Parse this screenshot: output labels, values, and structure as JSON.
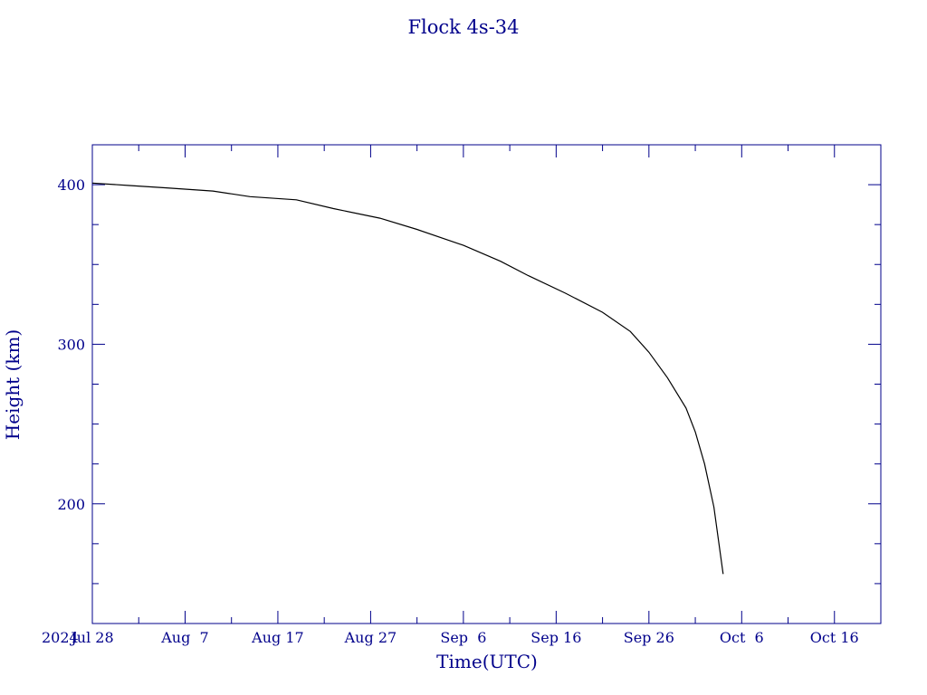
{
  "chart_data": {
    "type": "line",
    "title": "Flock 4s-34",
    "xlabel": "Time(UTC)",
    "ylabel": "Height (km)",
    "year_label": "2024",
    "x_range": [
      "2024-07-28",
      "2024-10-21"
    ],
    "ylim": [
      125,
      425
    ],
    "x_ticks": [
      {
        "date": "2024-07-28",
        "label": "Jul 28"
      },
      {
        "date": "2024-08-07",
        "label": "Aug  7"
      },
      {
        "date": "2024-08-17",
        "label": "Aug 17"
      },
      {
        "date": "2024-08-27",
        "label": "Aug 27"
      },
      {
        "date": "2024-09-06",
        "label": "Sep  6"
      },
      {
        "date": "2024-09-16",
        "label": "Sep 16"
      },
      {
        "date": "2024-09-26",
        "label": "Sep 26"
      },
      {
        "date": "2024-10-06",
        "label": "Oct  6"
      },
      {
        "date": "2024-10-16",
        "label": "Oct 16"
      }
    ],
    "y_ticks": [
      200,
      300,
      400
    ],
    "grid": false,
    "line_color": "#000000",
    "axis_color": "#00008b",
    "series": [
      {
        "x": [
          "2024-07-28",
          "2024-08-01",
          "2024-08-05",
          "2024-08-10",
          "2024-08-14",
          "2024-08-19",
          "2024-08-23",
          "2024-08-28",
          "2024-09-01",
          "2024-09-06",
          "2024-09-10",
          "2024-09-13",
          "2024-09-17",
          "2024-09-21",
          "2024-09-24",
          "2024-09-26",
          "2024-09-28",
          "2024-09-30",
          "2024-10-01",
          "2024-10-02",
          "2024-10-03",
          "2024-10-04"
        ],
        "y": [
          401,
          399.5,
          398,
          396,
          392.5,
          390.5,
          385,
          379,
          372,
          362,
          352,
          343,
          332,
          320,
          308,
          295,
          279,
          260,
          245,
          225,
          198,
          156
        ]
      }
    ]
  }
}
